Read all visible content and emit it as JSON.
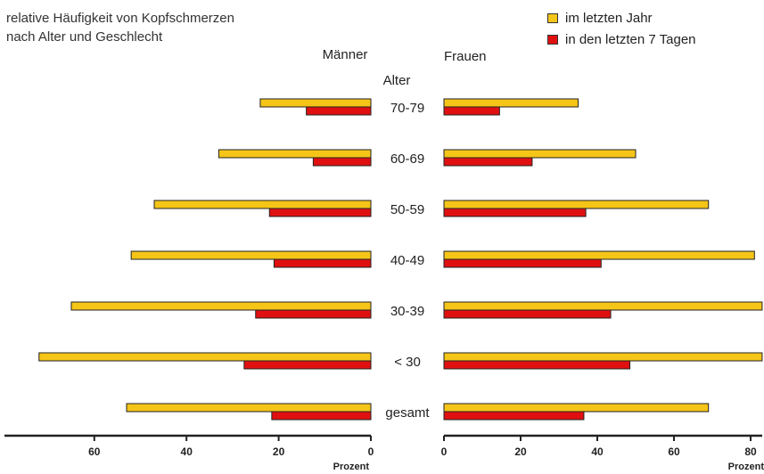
{
  "title_line1": "relative Häufigkeit von Kopfschmerzen",
  "title_line2": "nach Alter und Geschlecht",
  "legend": [
    {
      "label": "im letzten Jahr",
      "color": "#f5c518"
    },
    {
      "label": "in den letzten 7 Tagen",
      "color": "#e01010"
    }
  ],
  "chart_data": {
    "type": "bar",
    "orientation": "horizontal-population-pyramid",
    "title": "relative Häufigkeit von Kopfschmerzen nach Alter und Geschlecht",
    "group_header": "Alter",
    "panel_labels": [
      "Männer",
      "Frauen"
    ],
    "categories": [
      "70-79",
      "60-69",
      "50-59",
      "40-49",
      "30-39",
      "< 30",
      "gesamt"
    ],
    "xlabel": "Prozent",
    "xlim_left": [
      0,
      72
    ],
    "xlim_right": [
      0,
      83
    ],
    "x_ticks": [
      0,
      20,
      40,
      60,
      80
    ],
    "series": [
      {
        "name": "im letzten Jahr",
        "color": "#f5c518",
        "men": [
          24,
          33,
          47,
          52,
          65,
          72,
          53
        ],
        "women": [
          35,
          50,
          69,
          81,
          83,
          83,
          69
        ]
      },
      {
        "name": "in den letzten 7 Tagen",
        "color": "#e01010",
        "men": [
          14,
          12.5,
          22,
          21,
          25,
          27.5,
          21.5
        ],
        "women": [
          14.5,
          23,
          37,
          41,
          43.5,
          48.5,
          36.5
        ]
      }
    ]
  }
}
